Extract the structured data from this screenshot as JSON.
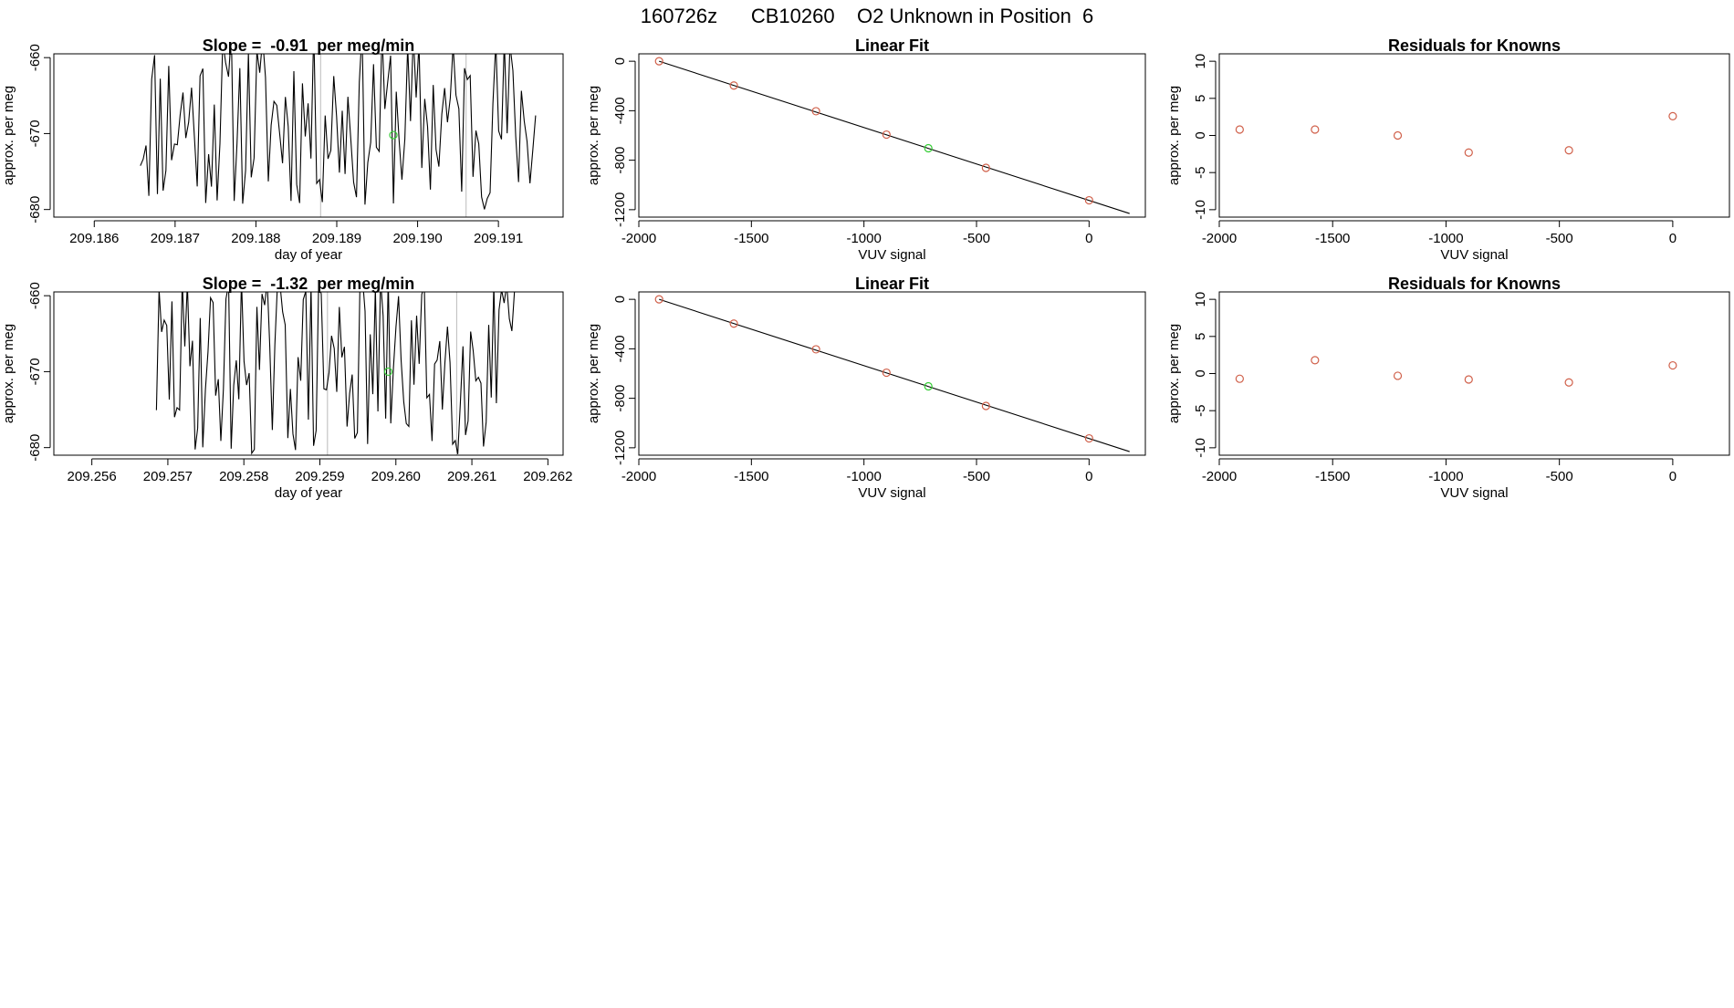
{
  "header": {
    "title": "160726z      CB10260    O2 Unknown in Position  6"
  },
  "colors": {
    "axis": "#000000",
    "trace": "#000000",
    "known_point": "#d0604a",
    "unknown_point": "#33cc33",
    "vline": "#bbbbbb"
  },
  "chart_data": [
    {
      "type": "line",
      "title": "Slope =  -0.91  per meg/min",
      "xlabel": "day of year",
      "ylabel": "approx. per meg",
      "xlim": [
        209.1855,
        209.1918
      ],
      "ylim": [
        -681,
        -659.5
      ],
      "xticks": [
        209.186,
        209.187,
        209.188,
        209.189,
        209.19,
        209.191
      ],
      "xtick_labels": [
        "209.186",
        "209.187",
        "209.188",
        "209.189",
        "209.190",
        "209.191"
      ],
      "yticks": [
        -680,
        -670,
        -660
      ],
      "ytick_labels": [
        "-680",
        "-670",
        "-660"
      ],
      "vlines": [
        209.1888,
        209.1906
      ],
      "series": [
        {
          "name": "trace",
          "x_start": 209.18657,
          "x_end": 209.19146,
          "n": 140,
          "amplitude": 12,
          "offset": -668,
          "seed": 11
        }
      ],
      "unknown_point": {
        "x": 209.1897,
        "y": -670.2
      }
    },
    {
      "type": "scatter",
      "title": "Linear Fit",
      "xlabel": "VUV signal",
      "ylabel": "approx. per meg",
      "xlim": [
        -2000,
        250
      ],
      "ylim": [
        -1260,
        60
      ],
      "xticks": [
        -2000,
        -1500,
        -1000,
        -500,
        0
      ],
      "xtick_labels": [
        "-2000",
        "-1500",
        "-1000",
        "-500",
        "0"
      ],
      "yticks": [
        -1200,
        -800,
        -400,
        0
      ],
      "ytick_labels": [
        "-1200",
        "-800",
        "-400",
        "0"
      ],
      "fit_line": {
        "x": [
          -1910,
          180
        ],
        "y": [
          0,
          -1231
        ]
      },
      "known": {
        "x": [
          -1910,
          -1578,
          -1213,
          -900,
          -458,
          0
        ],
        "y": [
          0,
          -196,
          -404,
          -593,
          -862,
          -1124
        ]
      },
      "unknown": {
        "x": [
          -714
        ],
        "y": [
          -703
        ]
      }
    },
    {
      "type": "scatter",
      "title": "Residuals for Knowns",
      "xlabel": "VUV signal",
      "ylabel": "approx. per meg",
      "xlim": [
        -2000,
        250
      ],
      "ylim": [
        -11,
        11
      ],
      "xticks": [
        -2000,
        -1500,
        -1000,
        -500,
        0
      ],
      "xtick_labels": [
        "-2000",
        "-1500",
        "-1000",
        "-500",
        "0"
      ],
      "yticks": [
        -10,
        -5,
        0,
        5,
        10
      ],
      "ytick_labels": [
        "-10",
        "-5",
        "0",
        "5",
        "10"
      ],
      "known": {
        "x": [
          -1910,
          -1578,
          -1213,
          -900,
          -458,
          0
        ],
        "y": [
          0.8,
          0.8,
          0.0,
          -2.3,
          -2.0,
          2.6
        ]
      }
    },
    {
      "type": "line",
      "title": "Slope =  -1.32  per meg/min",
      "xlabel": "day of year",
      "ylabel": "approx. per meg",
      "xlim": [
        209.2555,
        209.2622
      ],
      "ylim": [
        -681,
        -659.5
      ],
      "xticks": [
        209.256,
        209.257,
        209.258,
        209.259,
        209.26,
        209.261,
        209.262
      ],
      "xtick_labels": [
        "209.256",
        "209.257",
        "209.258",
        "209.259",
        "209.260",
        "209.261",
        "209.262"
      ],
      "yticks": [
        -680,
        -670,
        -660
      ],
      "ytick_labels": [
        "-680",
        "-670",
        "-660"
      ],
      "vlines": [
        209.2591,
        209.2608
      ],
      "series": [
        {
          "name": "trace",
          "x_start": 209.25685,
          "x_end": 209.26156,
          "n": 140,
          "amplitude": 12,
          "offset": -669,
          "seed": 29
        }
      ],
      "unknown_point": {
        "x": 209.2599,
        "y": -670.0
      }
    },
    {
      "type": "scatter",
      "title": "Linear Fit",
      "xlabel": "VUV signal",
      "ylabel": "approx. per meg",
      "xlim": [
        -2000,
        250
      ],
      "ylim": [
        -1260,
        60
      ],
      "xticks": [
        -2000,
        -1500,
        -1000,
        -500,
        0
      ],
      "xtick_labels": [
        "-2000",
        "-1500",
        "-1000",
        "-500",
        "0"
      ],
      "yticks": [
        -1200,
        -800,
        -400,
        0
      ],
      "ytick_labels": [
        "-1200",
        "-800",
        "-400",
        "0"
      ],
      "fit_line": {
        "x": [
          -1910,
          180
        ],
        "y": [
          0,
          -1231
        ]
      },
      "known": {
        "x": [
          -1910,
          -1578,
          -1213,
          -900,
          -458,
          0
        ],
        "y": [
          0,
          -196,
          -404,
          -593,
          -862,
          -1124
        ]
      },
      "unknown": {
        "x": [
          -714
        ],
        "y": [
          -703
        ]
      }
    },
    {
      "type": "scatter",
      "title": "Residuals for Knowns",
      "xlabel": "VUV signal",
      "ylabel": "approx. per meg",
      "xlim": [
        -2000,
        250
      ],
      "ylim": [
        -11,
        11
      ],
      "xticks": [
        -2000,
        -1500,
        -1000,
        -500,
        0
      ],
      "xtick_labels": [
        "-2000",
        "-1500",
        "-1000",
        "-500",
        "0"
      ],
      "yticks": [
        -10,
        -5,
        0,
        5,
        10
      ],
      "ytick_labels": [
        "-10",
        "-5",
        "0",
        "5",
        "10"
      ],
      "known": {
        "x": [
          -1910,
          -1578,
          -1213,
          -900,
          -458,
          0
        ],
        "y": [
          -0.7,
          1.8,
          -0.3,
          -0.8,
          -1.2,
          1.1
        ]
      }
    }
  ]
}
